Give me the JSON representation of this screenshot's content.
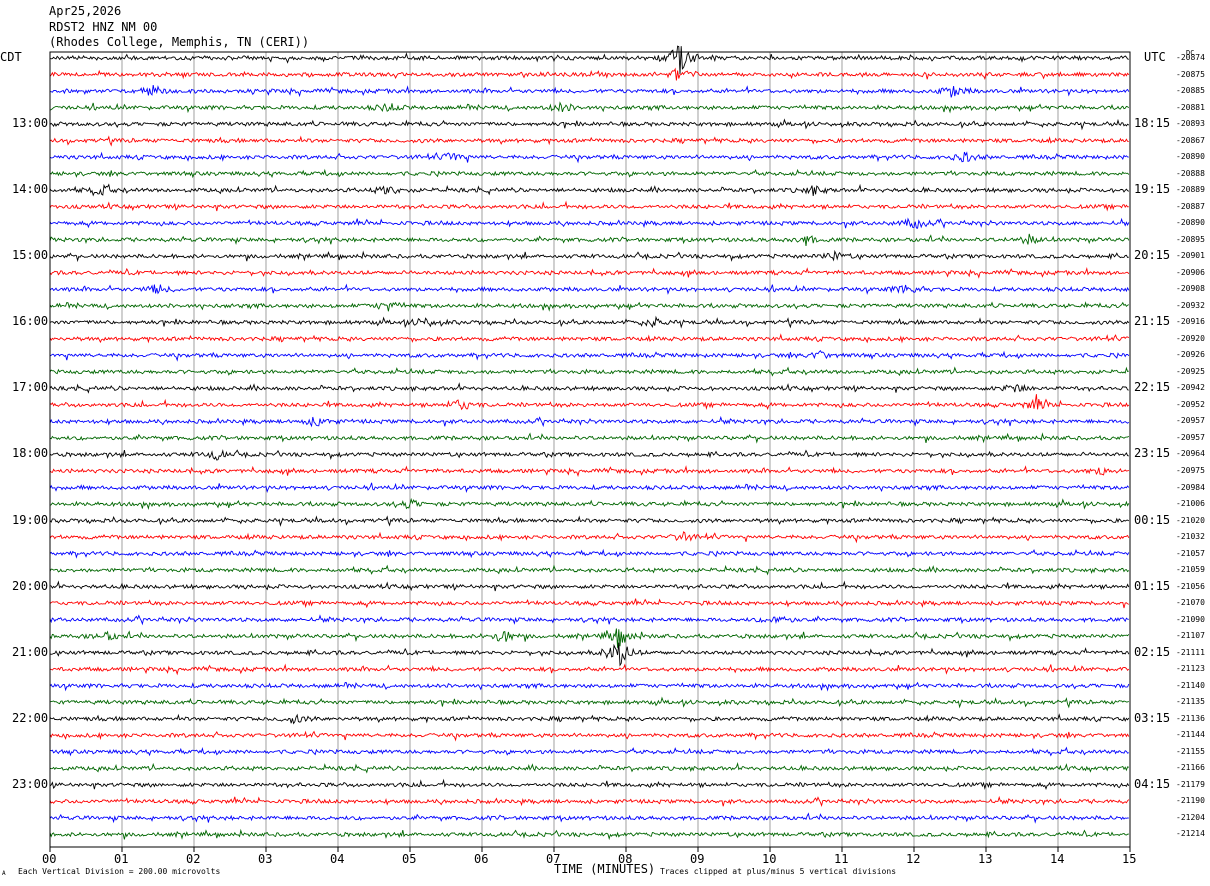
{
  "header": {
    "date": "Apr25,2026",
    "station": "RDST2 HNZ NM 00",
    "location": "(Rhodes College, Memphis, TN (CERI))"
  },
  "left_axis_label": "CDT",
  "right_axis_label": "UTC",
  "dc_label": "DC",
  "x_axis_title": "TIME (MINUTES)",
  "footer_left": "Each Vertical Division =  200.00 microvolts",
  "footer_right": "Traces clipped at plus/minus 5 vertical divisions",
  "footer_mark": "A",
  "colors": {
    "cycle": [
      "#000000",
      "#ff0000",
      "#0000ff",
      "#006600"
    ],
    "grid": "#888888"
  },
  "chart_data": {
    "type": "line",
    "title": "RDST2 HNZ NM 00",
    "xlabel": "TIME (MINUTES)",
    "ylabel": "",
    "xlim": [
      0,
      15
    ],
    "x_ticks": [
      "00",
      "01",
      "02",
      "03",
      "04",
      "05",
      "06",
      "07",
      "08",
      "09",
      "10",
      "11",
      "12",
      "13",
      "14",
      "15"
    ],
    "left_time_labels": [
      "13:00",
      "14:00",
      "15:00",
      "16:00",
      "17:00",
      "18:00",
      "19:00",
      "20:00",
      "21:00",
      "22:00",
      "23:00"
    ],
    "right_time_labels": [
      "18:15",
      "19:15",
      "20:15",
      "21:15",
      "22:15",
      "23:15",
      "00:15",
      "01:15",
      "02:15",
      "03:15",
      "04:15"
    ],
    "dc_offsets": [
      "-20874",
      "-20875",
      "-20885",
      "-20881",
      "-20893",
      "-20867",
      "-20890",
      "-20888",
      "-20889",
      "-20887",
      "-20890",
      "-20895",
      "-20901",
      "-20906",
      "-20908",
      "-20932",
      "-20916",
      "-20920",
      "-20926",
      "-20925",
      "-20942",
      "-20952",
      "-20957",
      "-20957",
      "-20964",
      "-20975",
      "-20984",
      "-21006",
      "-21020",
      "-21032",
      "-21057",
      "-21059",
      "-21056",
      "-21070",
      "-21090",
      "-21107",
      "-21111",
      "-21123",
      "-21140",
      "-21135",
      "-21136",
      "-21144",
      "-21155",
      "-21166",
      "-21179",
      "-21190",
      "-21204",
      "-21214"
    ],
    "events": [
      {
        "trace": 0,
        "minute": 8.75,
        "amp": 5
      },
      {
        "trace": 1,
        "minute": 8.75,
        "amp": 2
      },
      {
        "trace": 2,
        "minute": 12.55,
        "amp": 2
      },
      {
        "trace": 2,
        "minute": 1.45,
        "amp": 1.4
      },
      {
        "trace": 3,
        "minute": 7.1,
        "amp": 1.4
      },
      {
        "trace": 3,
        "minute": 4.7,
        "amp": 1.2
      },
      {
        "trace": 6,
        "minute": 5.6,
        "amp": 1.3
      },
      {
        "trace": 6,
        "minute": 12.7,
        "amp": 1.4
      },
      {
        "trace": 8,
        "minute": 0.7,
        "amp": 1.4
      },
      {
        "trace": 8,
        "minute": 4.7,
        "amp": 1.4
      },
      {
        "trace": 8,
        "minute": 10.6,
        "amp": 1.3
      },
      {
        "trace": 10,
        "minute": 12.0,
        "amp": 1.6
      },
      {
        "trace": 11,
        "minute": 10.5,
        "amp": 1.4
      },
      {
        "trace": 11,
        "minute": 13.6,
        "amp": 1.3
      },
      {
        "trace": 12,
        "minute": 10.9,
        "amp": 1.2
      },
      {
        "trace": 14,
        "minute": 1.5,
        "amp": 1.3
      },
      {
        "trace": 14,
        "minute": 11.9,
        "amp": 1.6
      },
      {
        "trace": 15,
        "minute": 4.7,
        "amp": 1.5
      },
      {
        "trace": 16,
        "minute": 5.2,
        "amp": 1.4
      },
      {
        "trace": 16,
        "minute": 8.4,
        "amp": 1.3
      },
      {
        "trace": 18,
        "minute": 10.7,
        "amp": 1.2
      },
      {
        "trace": 20,
        "minute": 13.4,
        "amp": 1.4
      },
      {
        "trace": 21,
        "minute": 5.7,
        "amp": 1.8
      },
      {
        "trace": 21,
        "minute": 13.7,
        "amp": 2
      },
      {
        "trace": 22,
        "minute": 3.7,
        "amp": 1.4
      },
      {
        "trace": 24,
        "minute": 2.3,
        "amp": 1.4
      },
      {
        "trace": 25,
        "minute": 14.6,
        "amp": 1.2
      },
      {
        "trace": 27,
        "minute": 5.0,
        "amp": 1.3
      },
      {
        "trace": 29,
        "minute": 8.8,
        "amp": 1.2
      },
      {
        "trace": 34,
        "minute": 10.1,
        "amp": 1.4
      },
      {
        "trace": 35,
        "minute": 0.8,
        "amp": 1.2
      },
      {
        "trace": 35,
        "minute": 6.3,
        "amp": 2
      },
      {
        "trace": 35,
        "minute": 7.9,
        "amp": 3
      },
      {
        "trace": 36,
        "minute": 7.9,
        "amp": 4.5
      },
      {
        "trace": 40,
        "minute": 3.4,
        "amp": 1.3
      }
    ]
  }
}
